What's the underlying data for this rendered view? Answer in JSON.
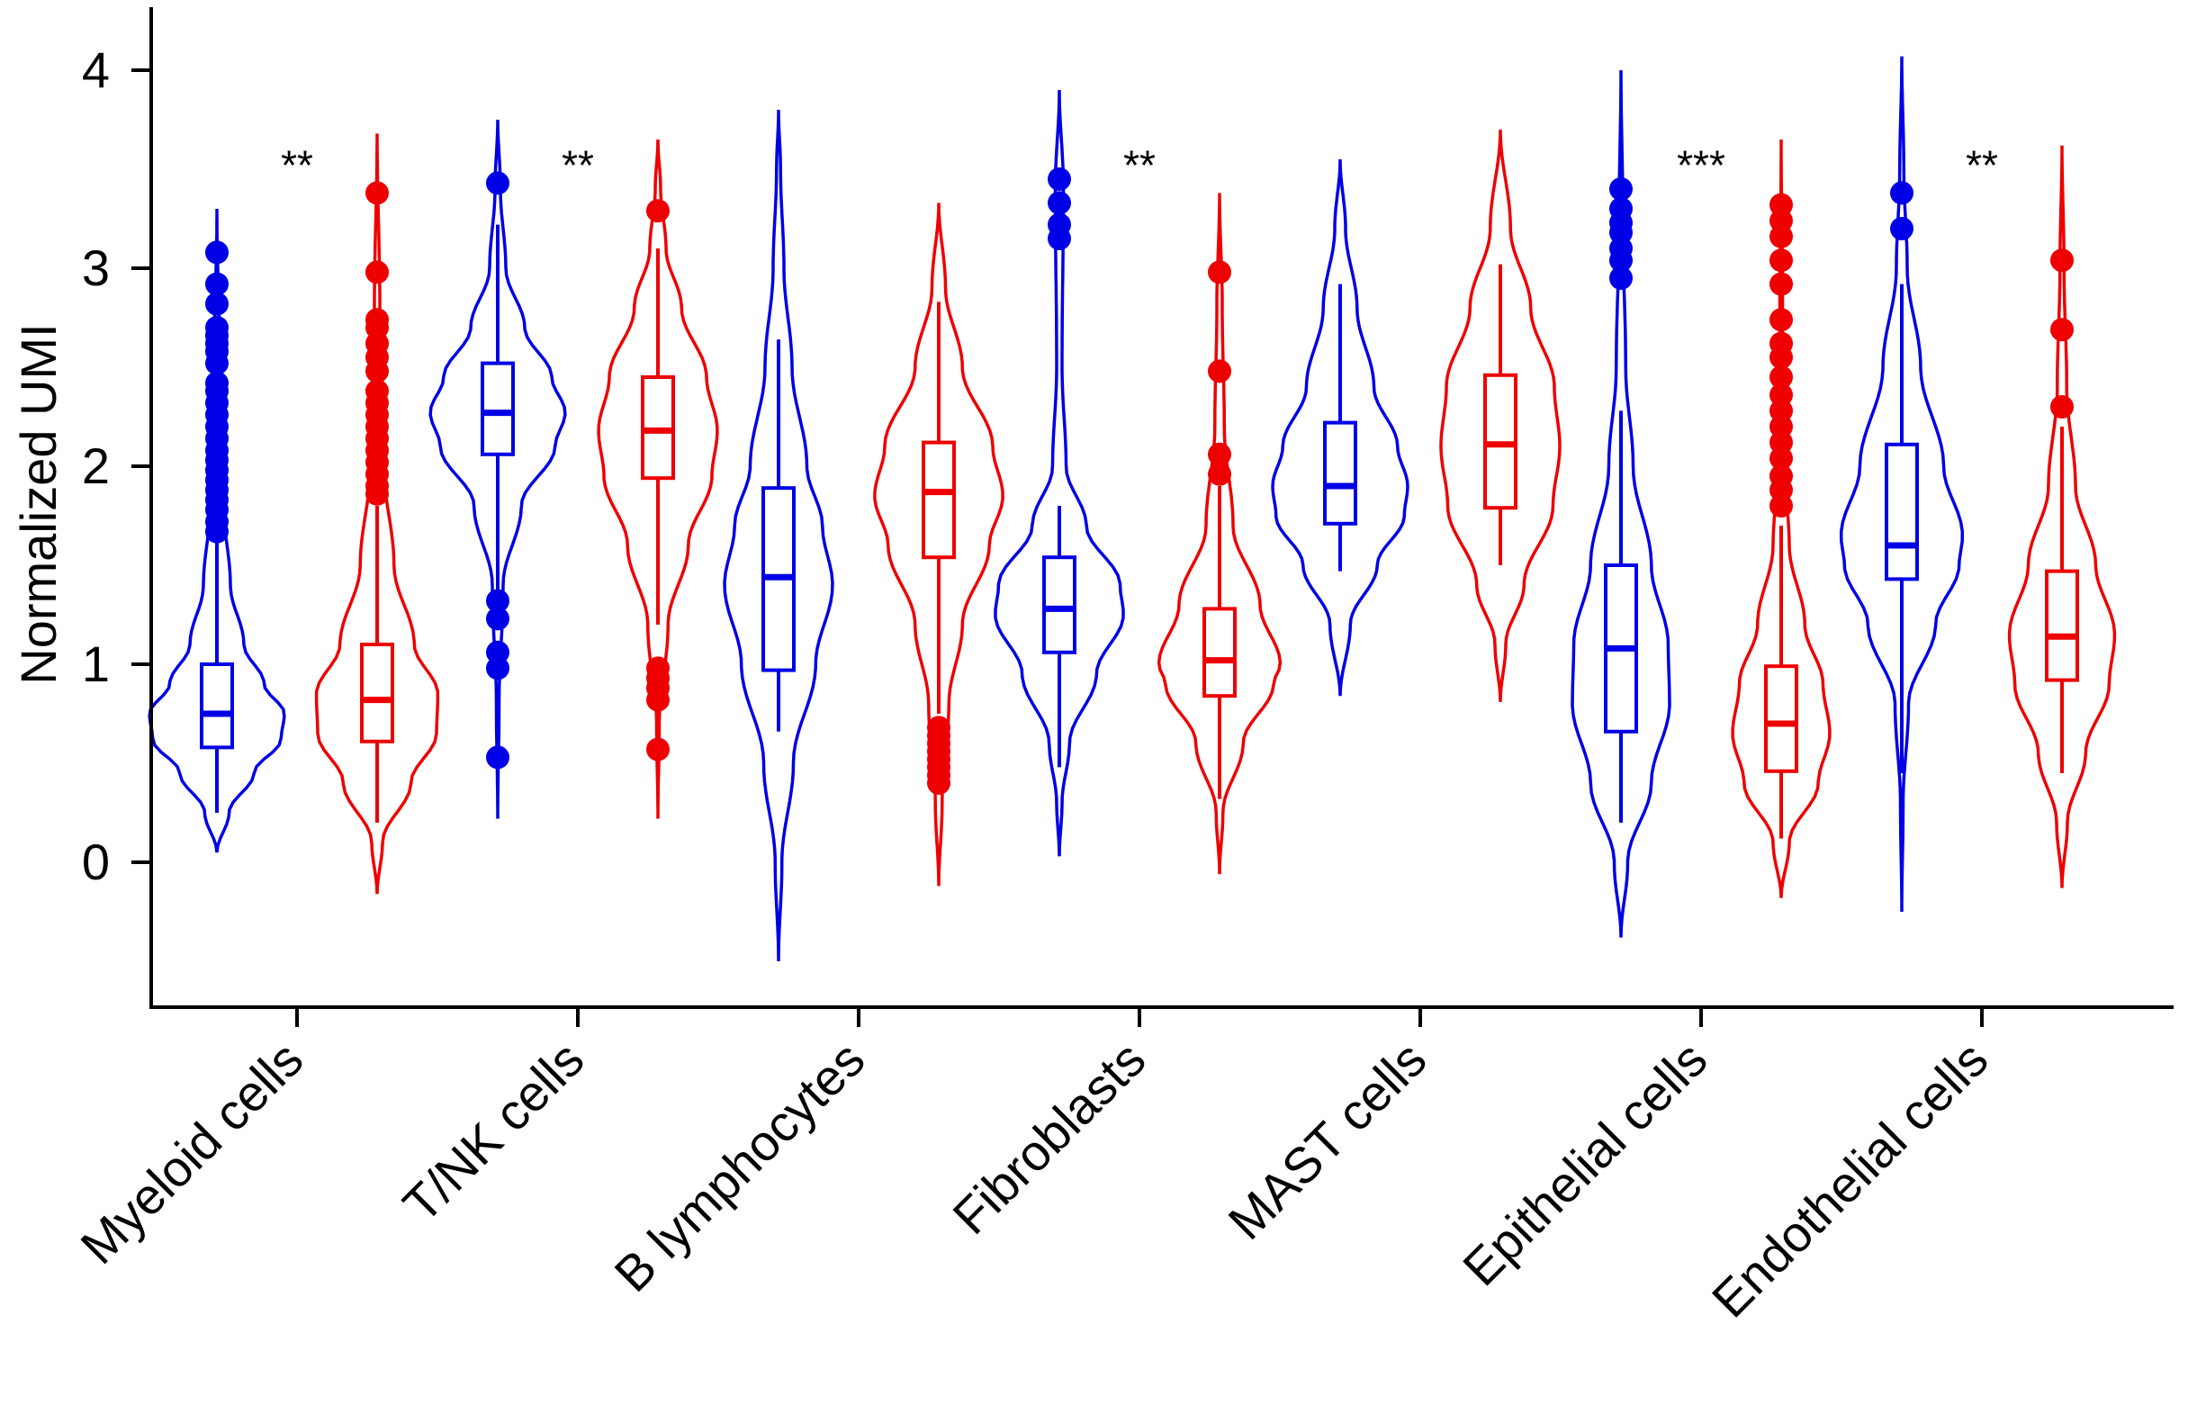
{
  "chart_data": {
    "type": "violin",
    "title": "",
    "xlabel": "",
    "ylabel": "Normalized UMI",
    "ylim": [
      -0.62,
      4.3
    ],
    "yticks": [
      0,
      1,
      2,
      3,
      4
    ],
    "ytick_labels": [
      "0",
      "1",
      "2",
      "3",
      "4"
    ],
    "grid": false,
    "legend": "none",
    "categories": [
      "Myeloid cells",
      "T/NK cells",
      "B lymphocytes",
      "Fibroblasts",
      "MAST cells",
      "Epithelial cells",
      "Endothelial cells"
    ],
    "significance": [
      "**",
      "**",
      "",
      "**",
      "",
      "***",
      "**"
    ],
    "series": [
      {
        "name": "group-blue",
        "color": "#0000e6",
        "groups": [
          {
            "ymin": 0.05,
            "ymax": 3.3,
            "q1": 0.58,
            "median": 0.75,
            "q3": 1.0,
            "wlo": 0.25,
            "whi": 1.62,
            "profile": [
              [
                0.05,
                0.0
              ],
              [
                0.25,
                0.18
              ],
              [
                0.45,
                0.55
              ],
              [
                0.62,
                0.95
              ],
              [
                0.75,
                1.0
              ],
              [
                0.9,
                0.7
              ],
              [
                1.1,
                0.4
              ],
              [
                1.4,
                0.2
              ],
              [
                1.8,
                0.1
              ],
              [
                2.4,
                0.05
              ],
              [
                3.3,
                0.0
              ]
            ],
            "outliers": [
              1.67,
              1.72,
              1.78,
              1.83,
              1.88,
              1.93,
              1.98,
              2.03,
              2.08,
              2.14,
              2.2,
              2.26,
              2.32,
              2.38,
              2.42,
              2.52,
              2.58,
              2.62,
              2.66,
              2.7,
              2.82,
              2.92,
              3.08
            ]
          },
          {
            "ymin": 0.22,
            "ymax": 3.75,
            "q1": 2.06,
            "median": 2.27,
            "q3": 2.52,
            "wlo": 1.36,
            "whi": 3.22,
            "profile": [
              [
                0.22,
                0.0
              ],
              [
                0.8,
                0.02
              ],
              [
                1.4,
                0.08
              ],
              [
                1.8,
                0.35
              ],
              [
                2.1,
                0.85
              ],
              [
                2.27,
                1.0
              ],
              [
                2.45,
                0.8
              ],
              [
                2.7,
                0.4
              ],
              [
                3.0,
                0.12
              ],
              [
                3.4,
                0.04
              ],
              [
                3.75,
                0.0
              ]
            ],
            "outliers": [
              0.53,
              0.98,
              1.06,
              1.23,
              1.32,
              3.43
            ]
          },
          {
            "ymin": -0.5,
            "ymax": 3.8,
            "q1": 0.97,
            "median": 1.44,
            "q3": 1.89,
            "wlo": 0.66,
            "whi": 2.64,
            "profile": [
              [
                -0.5,
                0.0
              ],
              [
                0.0,
                0.05
              ],
              [
                0.5,
                0.22
              ],
              [
                1.0,
                0.55
              ],
              [
                1.4,
                0.8
              ],
              [
                1.7,
                0.65
              ],
              [
                2.0,
                0.42
              ],
              [
                2.5,
                0.2
              ],
              [
                3.0,
                0.08
              ],
              [
                3.5,
                0.03
              ],
              [
                3.8,
                0.0
              ]
            ],
            "outliers": []
          },
          {
            "ymin": 0.03,
            "ymax": 3.9,
            "q1": 1.06,
            "median": 1.28,
            "q3": 1.54,
            "wlo": 0.48,
            "whi": 1.8,
            "profile": [
              [
                0.03,
                0.0
              ],
              [
                0.3,
                0.04
              ],
              [
                0.6,
                0.15
              ],
              [
                0.95,
                0.55
              ],
              [
                1.25,
                0.95
              ],
              [
                1.4,
                0.9
              ],
              [
                1.7,
                0.4
              ],
              [
                2.0,
                0.1
              ],
              [
                2.5,
                0.04
              ],
              [
                3.4,
                0.06
              ],
              [
                3.9,
                0.0
              ]
            ],
            "outliers": [
              3.15,
              3.22,
              3.33,
              3.45
            ]
          },
          {
            "ymin": 0.84,
            "ymax": 3.55,
            "q1": 1.71,
            "median": 1.9,
            "q3": 2.22,
            "wlo": 1.47,
            "whi": 2.92,
            "profile": [
              [
                0.84,
                0.0
              ],
              [
                1.2,
                0.15
              ],
              [
                1.5,
                0.55
              ],
              [
                1.75,
                0.95
              ],
              [
                1.9,
                1.0
              ],
              [
                2.1,
                0.85
              ],
              [
                2.4,
                0.5
              ],
              [
                2.8,
                0.25
              ],
              [
                3.2,
                0.08
              ],
              [
                3.55,
                0.0
              ]
            ],
            "outliers": []
          },
          {
            "ymin": -0.38,
            "ymax": 4.0,
            "q1": 0.66,
            "median": 1.08,
            "q3": 1.5,
            "wlo": 0.2,
            "whi": 2.28,
            "profile": [
              [
                -0.38,
                0.0
              ],
              [
                0.0,
                0.1
              ],
              [
                0.4,
                0.45
              ],
              [
                0.8,
                0.72
              ],
              [
                1.1,
                0.7
              ],
              [
                1.5,
                0.45
              ],
              [
                2.0,
                0.18
              ],
              [
                2.5,
                0.07
              ],
              [
                3.2,
                0.03
              ],
              [
                4.0,
                0.0
              ]
            ],
            "outliers": [
              2.95,
              3.04,
              3.1,
              3.18,
              3.23,
              3.3,
              3.4
            ]
          },
          {
            "ymin": -0.25,
            "ymax": 4.07,
            "q1": 1.43,
            "median": 1.6,
            "q3": 2.11,
            "wlo": 0.45,
            "whi": 2.92,
            "profile": [
              [
                -0.25,
                0.0
              ],
              [
                0.3,
                0.02
              ],
              [
                0.8,
                0.1
              ],
              [
                1.2,
                0.5
              ],
              [
                1.5,
                0.85
              ],
              [
                1.65,
                0.9
              ],
              [
                2.0,
                0.62
              ],
              [
                2.5,
                0.28
              ],
              [
                3.0,
                0.08
              ],
              [
                3.5,
                0.03
              ],
              [
                4.07,
                0.0
              ]
            ],
            "outliers": [
              3.2,
              3.38
            ]
          }
        ]
      },
      {
        "name": "group-red",
        "color": "#ee0000",
        "groups": [
          {
            "ymin": -0.16,
            "ymax": 3.68,
            "q1": 0.61,
            "median": 0.82,
            "q3": 1.1,
            "wlo": 0.2,
            "whi": 1.8,
            "profile": [
              [
                -0.16,
                0.0
              ],
              [
                0.1,
                0.08
              ],
              [
                0.4,
                0.5
              ],
              [
                0.65,
                0.88
              ],
              [
                0.85,
                0.9
              ],
              [
                1.1,
                0.55
              ],
              [
                1.5,
                0.25
              ],
              [
                2.0,
                0.1
              ],
              [
                2.8,
                0.04
              ],
              [
                3.68,
                0.0
              ]
            ],
            "outliers": [
              1.86,
              1.9,
              1.96,
              2.02,
              2.08,
              2.14,
              2.2,
              2.26,
              2.32,
              2.38,
              2.48,
              2.55,
              2.62,
              2.7,
              2.74,
              2.98,
              3.38
            ]
          },
          {
            "ymin": 0.22,
            "ymax": 3.65,
            "q1": 1.94,
            "median": 2.18,
            "q3": 2.45,
            "wlo": 1.2,
            "whi": 3.1,
            "profile": [
              [
                0.22,
                0.0
              ],
              [
                0.7,
                0.02
              ],
              [
                1.2,
                0.15
              ],
              [
                1.6,
                0.45
              ],
              [
                1.95,
                0.8
              ],
              [
                2.18,
                0.88
              ],
              [
                2.45,
                0.72
              ],
              [
                2.8,
                0.35
              ],
              [
                3.1,
                0.12
              ],
              [
                3.4,
                0.04
              ],
              [
                3.65,
                0.0
              ]
            ],
            "outliers": [
              0.57,
              0.82,
              0.88,
              0.93,
              0.98,
              3.29
            ]
          },
          {
            "ymin": -0.12,
            "ymax": 3.33,
            "q1": 1.54,
            "median": 1.87,
            "q3": 2.12,
            "wlo": 0.75,
            "whi": 2.83,
            "profile": [
              [
                -0.12,
                0.0
              ],
              [
                0.3,
                0.05
              ],
              [
                0.8,
                0.15
              ],
              [
                1.2,
                0.35
              ],
              [
                1.6,
                0.75
              ],
              [
                1.85,
                0.95
              ],
              [
                2.1,
                0.8
              ],
              [
                2.5,
                0.35
              ],
              [
                2.9,
                0.1
              ],
              [
                3.33,
                0.0
              ]
            ],
            "outliers": [
              0.4,
              0.44,
              0.48,
              0.52,
              0.56,
              0.6,
              0.64,
              0.68
            ]
          },
          {
            "ymin": -0.06,
            "ymax": 3.38,
            "q1": 0.84,
            "median": 1.02,
            "q3": 1.28,
            "wlo": 0.32,
            "whi": 1.9,
            "profile": [
              [
                -0.06,
                0.0
              ],
              [
                0.25,
                0.05
              ],
              [
                0.6,
                0.35
              ],
              [
                0.9,
                0.8
              ],
              [
                1.0,
                0.9
              ],
              [
                1.3,
                0.6
              ],
              [
                1.7,
                0.2
              ],
              [
                2.2,
                0.07
              ],
              [
                2.8,
                0.04
              ],
              [
                3.38,
                0.0
              ]
            ],
            "outliers": [
              1.96,
              2.06,
              2.48,
              2.98
            ]
          },
          {
            "ymin": 0.81,
            "ymax": 3.7,
            "q1": 1.79,
            "median": 2.11,
            "q3": 2.46,
            "wlo": 1.5,
            "whi": 3.02,
            "profile": [
              [
                0.81,
                0.0
              ],
              [
                1.1,
                0.08
              ],
              [
                1.4,
                0.35
              ],
              [
                1.8,
                0.78
              ],
              [
                2.1,
                0.88
              ],
              [
                2.4,
                0.8
              ],
              [
                2.8,
                0.45
              ],
              [
                3.2,
                0.15
              ],
              [
                3.7,
                0.0
              ]
            ],
            "outliers": []
          },
          {
            "ymin": -0.18,
            "ymax": 3.65,
            "q1": 0.46,
            "median": 0.7,
            "q3": 0.99,
            "wlo": 0.12,
            "whi": 1.7,
            "profile": [
              [
                -0.18,
                0.0
              ],
              [
                0.1,
                0.12
              ],
              [
                0.4,
                0.55
              ],
              [
                0.65,
                0.72
              ],
              [
                0.9,
                0.62
              ],
              [
                1.2,
                0.35
              ],
              [
                1.6,
                0.12
              ],
              [
                2.0,
                0.05
              ],
              [
                2.8,
                0.02
              ],
              [
                3.65,
                0.0
              ]
            ],
            "outliers": [
              1.8,
              1.88,
              1.95,
              2.04,
              2.12,
              2.2,
              2.28,
              2.36,
              2.45,
              2.55,
              2.62,
              2.74,
              2.92,
              3.04,
              3.16,
              3.24,
              3.32
            ]
          },
          {
            "ymin": -0.13,
            "ymax": 3.62,
            "q1": 0.92,
            "median": 1.14,
            "q3": 1.47,
            "wlo": 0.45,
            "whi": 2.2,
            "profile": [
              [
                -0.13,
                0.0
              ],
              [
                0.2,
                0.08
              ],
              [
                0.55,
                0.35
              ],
              [
                0.9,
                0.7
              ],
              [
                1.15,
                0.78
              ],
              [
                1.5,
                0.5
              ],
              [
                1.9,
                0.2
              ],
              [
                2.4,
                0.07
              ],
              [
                3.0,
                0.03
              ],
              [
                3.62,
                0.0
              ]
            ],
            "outliers": [
              2.3,
              2.69,
              3.04
            ]
          }
        ]
      }
    ]
  }
}
